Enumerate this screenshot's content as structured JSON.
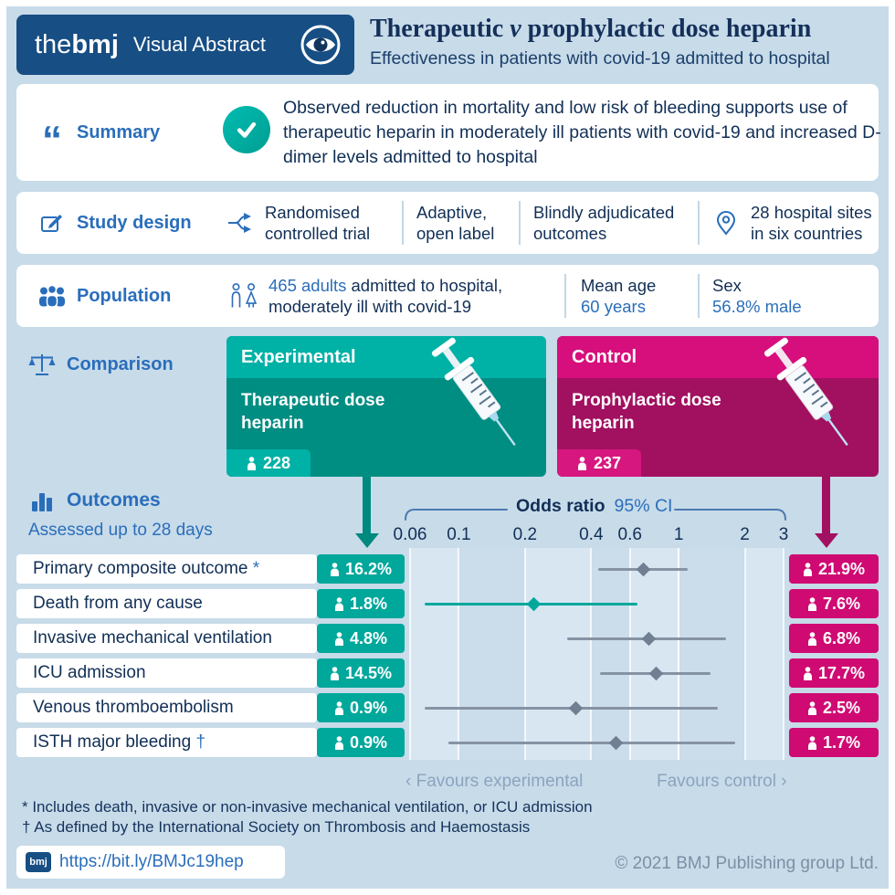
{
  "colors": {
    "background": "#c8dbe9",
    "bmj_blue_dark": "#174e84",
    "accent_blue": "#2a6ebb",
    "text_navy": "#112f56",
    "teal_header": "#00b1a6",
    "teal_body": "#008d82",
    "teal_chip": "#00a79b",
    "magenta_header": "#d60f7c",
    "magenta_body": "#a21060",
    "magenta_chip": "#cf0a72",
    "ci_gray": "#707f92",
    "muted_blue": "#8ba4bf"
  },
  "icons": {
    "quote_glyph": "“"
  },
  "header": {
    "logo_the": "the",
    "logo_bmj": "bmj",
    "logo_suffix": "Visual Abstract",
    "title_pre": "Therapeutic",
    "title_v": "v",
    "title_post": "prophylactic dose heparin",
    "subtitle": "Effectiveness in patients with covid-19 admitted to hospital"
  },
  "summary": {
    "label": "Summary",
    "text": "Observed reduction in mortality and low risk of bleeding supports use of therapeutic heparin in moderately ill patients with covid-19 and increased D-dimer levels admitted to hospital"
  },
  "study_design": {
    "label": "Study design",
    "items": [
      {
        "line1": "Randomised",
        "line2": "controlled trial"
      },
      {
        "line1": "Adaptive,",
        "line2": "open label"
      },
      {
        "line1": "Blindly adjudicated",
        "line2": "outcomes"
      },
      {
        "line1": "28 hospital sites",
        "line2": "in six countries"
      }
    ]
  },
  "population": {
    "label": "Population",
    "stat1_highlight": "465 adults",
    "stat1_rest": " admitted to hospital,",
    "stat1_line2": "moderately ill with covid-19",
    "stat2_label": "Mean age",
    "stat2_value": "60 years",
    "stat3_label": "Sex",
    "stat3_value": "56.8% male"
  },
  "comparison": {
    "label": "Comparison",
    "experimental": {
      "header": "Experimental",
      "name_line1": "Therapeutic dose",
      "name_line2": "heparin",
      "n": "228"
    },
    "control": {
      "header": "Control",
      "name_line1": "Prophylactic dose",
      "name_line2": "heparin",
      "n": "237"
    }
  },
  "outcomes": {
    "label": "Outcomes",
    "sublabel": "Assessed up to 28 days",
    "axis_title": "Odds ratio",
    "axis_ci": "95% CI",
    "favours_left": "‹ Favours experimental",
    "favours_right": "Favours control ›"
  },
  "chart_data": {
    "type": "forest",
    "scale": "log",
    "title": "Odds ratio 95% CI",
    "x_ticks": [
      0.06,
      0.1,
      0.2,
      0.4,
      0.6,
      1,
      2,
      3
    ],
    "x_range": [
      0.06,
      3
    ],
    "reference_line": 1,
    "rows": [
      {
        "label": "Primary composite outcome",
        "marker": "*",
        "experimental_pct": "16.2%",
        "control_pct": "21.9%",
        "or": 0.69,
        "ci_low": 0.43,
        "ci_high": 1.1,
        "highlight": false
      },
      {
        "label": "Death from any cause",
        "marker": "",
        "experimental_pct": "1.8%",
        "control_pct": "7.6%",
        "or": 0.22,
        "ci_low": 0.07,
        "ci_high": 0.65,
        "highlight": true
      },
      {
        "label": "Invasive mechanical ventilation",
        "marker": "",
        "experimental_pct": "4.8%",
        "control_pct": "6.8%",
        "or": 0.73,
        "ci_low": 0.31,
        "ci_high": 1.65,
        "highlight": false
      },
      {
        "label": "ICU admission",
        "marker": "",
        "experimental_pct": "14.5%",
        "control_pct": "17.7%",
        "or": 0.79,
        "ci_low": 0.44,
        "ci_high": 1.4,
        "highlight": false
      },
      {
        "label": "Venous thromboembolism",
        "marker": "",
        "experimental_pct": "0.9%",
        "control_pct": "2.5%",
        "or": 0.34,
        "ci_low": 0.07,
        "ci_high": 1.5,
        "highlight": false
      },
      {
        "label": "ISTH major bleeding",
        "marker": "†",
        "experimental_pct": "0.9%",
        "control_pct": "1.7%",
        "or": 0.52,
        "ci_low": 0.09,
        "ci_high": 1.8,
        "highlight": false
      }
    ]
  },
  "footnotes": [
    "* Includes death, invasive or non-invasive mechanical ventilation, or ICU admission",
    "† As defined by the International Society on Thrombosis and Haemostasis"
  ],
  "footer": {
    "logo": "bmj",
    "link": "https://bit.ly/BMJc19hep",
    "copyright": "© 2021 BMJ Publishing group Ltd."
  }
}
